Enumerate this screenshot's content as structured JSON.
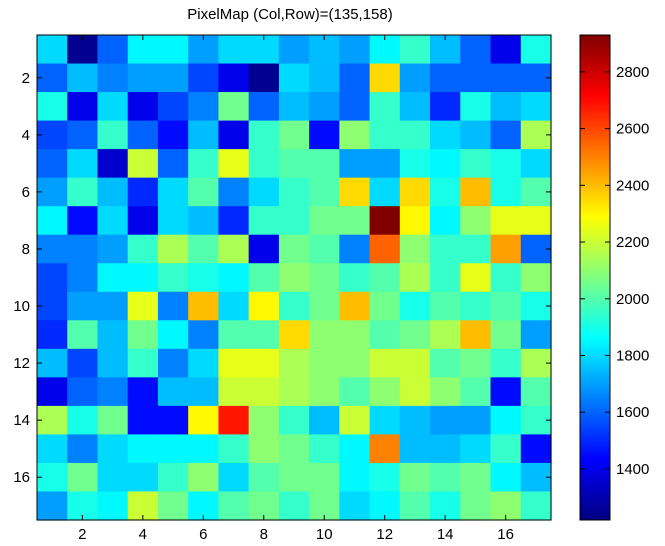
{
  "chart_data": {
    "type": "heatmap",
    "title": "PixelMap (Col,Row)=(135,158)",
    "xlabel": "",
    "ylabel": "",
    "colormap": "jet",
    "n_cols": 17,
    "n_rows": 17,
    "x_ticks": [
      2,
      4,
      6,
      8,
      10,
      12,
      14,
      16
    ],
    "y_ticks": [
      2,
      4,
      6,
      8,
      10,
      12,
      14,
      16
    ],
    "clim": [
      1220,
      2930
    ],
    "colorbar_ticks": [
      1400,
      1600,
      1800,
      2000,
      2200,
      2400,
      2600,
      2800
    ],
    "values": [
      [
        1800,
        1250,
        1600,
        1850,
        1850,
        1700,
        1800,
        1800,
        1700,
        1750,
        1700,
        1850,
        1950,
        1750,
        1600,
        1400,
        1900
      ],
      [
        1600,
        1750,
        1650,
        1700,
        1700,
        1550,
        1400,
        1250,
        1800,
        1750,
        1600,
        2350,
        1700,
        1600,
        1600,
        1600,
        1600
      ],
      [
        1900,
        1400,
        1800,
        1400,
        1550,
        1650,
        2050,
        1600,
        1750,
        1700,
        1600,
        1950,
        1750,
        1500,
        1900,
        1750,
        1800
      ],
      [
        1550,
        1600,
        1950,
        1600,
        1450,
        1750,
        1400,
        1950,
        2050,
        1450,
        2100,
        1950,
        1950,
        1800,
        1750,
        1600,
        2150
      ],
      [
        1600,
        1800,
        1350,
        2200,
        1600,
        1950,
        2250,
        1950,
        2000,
        2000,
        1700,
        1700,
        1900,
        1850,
        1950,
        1900,
        1800
      ],
      [
        1700,
        1950,
        1750,
        1500,
        1800,
        2000,
        1650,
        1800,
        1950,
        2000,
        2350,
        1800,
        2350,
        1900,
        2400,
        1900,
        2000
      ],
      [
        1850,
        1450,
        1800,
        1400,
        1800,
        1750,
        1500,
        1950,
        1950,
        2050,
        2050,
        2930,
        2300,
        1850,
        2100,
        2250,
        2250
      ],
      [
        1650,
        1650,
        1700,
        1950,
        2150,
        2000,
        2150,
        1400,
        2050,
        2000,
        1650,
        2550,
        2100,
        1950,
        1950,
        2450,
        1600
      ],
      [
        1550,
        1650,
        1850,
        1850,
        1950,
        1900,
        1850,
        2000,
        2100,
        2050,
        1950,
        2000,
        2150,
        1950,
        2250,
        1950,
        2100
      ],
      [
        1550,
        1700,
        1700,
        2250,
        1650,
        2400,
        1800,
        2300,
        1950,
        2050,
        2400,
        2050,
        1900,
        2000,
        1950,
        2000,
        1900
      ],
      [
        1500,
        2000,
        1750,
        2050,
        1850,
        1650,
        2000,
        2000,
        2350,
        2100,
        2100,
        2000,
        2050,
        2150,
        2400,
        2050,
        1700
      ],
      [
        1750,
        1550,
        1750,
        1950,
        1650,
        1800,
        2250,
        2250,
        2150,
        2100,
        2100,
        2200,
        2200,
        2000,
        2050,
        1950,
        2150
      ],
      [
        1400,
        1600,
        1650,
        1450,
        1750,
        1750,
        2200,
        2200,
        2150,
        2100,
        2000,
        2100,
        2200,
        2100,
        2000,
        1450,
        2000
      ],
      [
        2150,
        1900,
        2050,
        1450,
        1450,
        2300,
        2680,
        2100,
        1950,
        1750,
        2200,
        1800,
        1750,
        1700,
        1700,
        1850,
        1950
      ],
      [
        1800,
        1650,
        1800,
        1850,
        1850,
        1850,
        1950,
        2100,
        2050,
        1950,
        1850,
        2500,
        1750,
        1750,
        1800,
        1950,
        1450
      ],
      [
        1900,
        2050,
        1800,
        1800,
        1950,
        2100,
        1800,
        2000,
        2050,
        2050,
        1850,
        1900,
        2050,
        2000,
        2050,
        1850,
        1750
      ],
      [
        1700,
        1900,
        1850,
        2200,
        2050,
        1850,
        2000,
        2050,
        1950,
        2050,
        1800,
        1850,
        2000,
        1900,
        2050,
        2100,
        1950
      ]
    ]
  }
}
